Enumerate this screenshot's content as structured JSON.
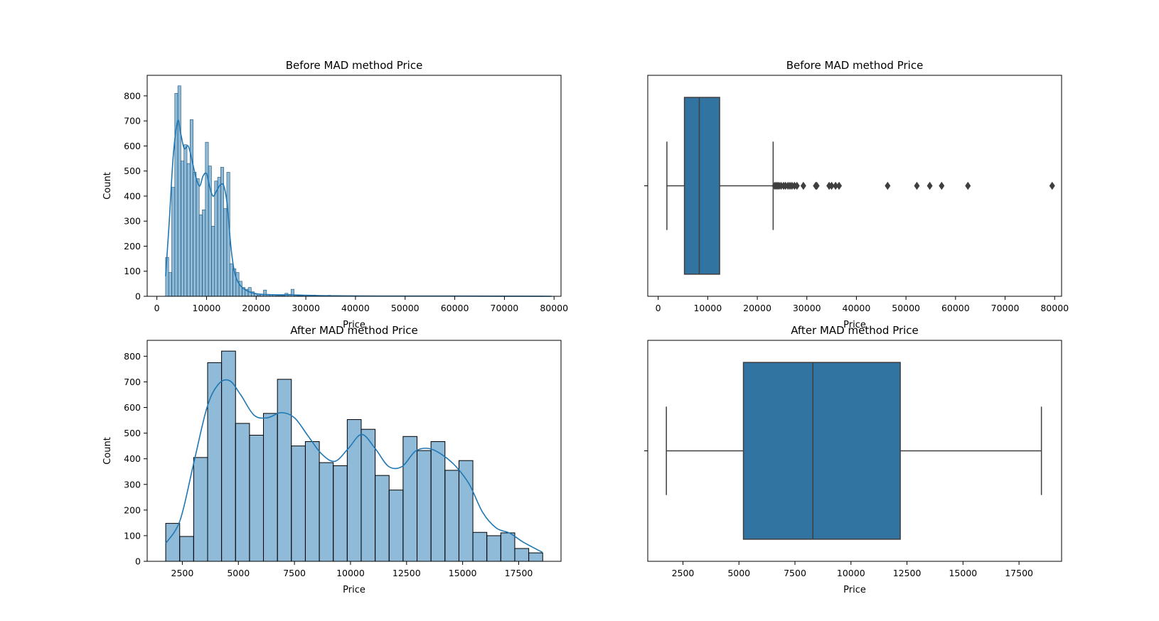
{
  "chart_data": [
    {
      "id": "hist-before",
      "type": "bar",
      "subtype": "histogram-with-kde",
      "title": "Before MAD method Price",
      "xlabel": "Price",
      "ylabel": "Count",
      "xlim": [
        -1950,
        81400
      ],
      "ylim": [
        0,
        882
      ],
      "xticks": [
        0,
        10000,
        20000,
        30000,
        40000,
        50000,
        60000,
        70000,
        80000
      ],
      "yticks": [
        0,
        100,
        200,
        300,
        400,
        500,
        600,
        700,
        800
      ],
      "bar_color": "#1f77b4",
      "bin_edges": [
        1760,
        2376,
        2992,
        3608,
        4224,
        4840,
        5456,
        6072,
        6688,
        7304,
        7920,
        8536,
        9152,
        9768,
        10384,
        11000,
        11616,
        12232,
        12848,
        13464,
        14080,
        14696,
        15312,
        15928,
        16544,
        17160,
        17776,
        18392,
        19008,
        19624,
        20240,
        20856,
        21472,
        22088,
        22704,
        23320,
        23936,
        24552,
        25168,
        25784,
        26400,
        27016,
        27632,
        28248,
        28864,
        29480,
        30096,
        30712,
        31328,
        31944,
        32560,
        33176,
        33792,
        34408,
        35024,
        35640,
        36256,
        36872,
        37488,
        38104
      ],
      "values": [
        155,
        95,
        435,
        810,
        840,
        540,
        605,
        530,
        705,
        495,
        470,
        325,
        345,
        615,
        520,
        280,
        460,
        475,
        515,
        350,
        495,
        130,
        110,
        95,
        60,
        35,
        28,
        35,
        18,
        10,
        5,
        8,
        25,
        8,
        5,
        5,
        3,
        3,
        3,
        12,
        8,
        28,
        3,
        2,
        2,
        1,
        1,
        2,
        5,
        3,
        1,
        1,
        1,
        4,
        3,
        3,
        3,
        1,
        1
      ],
      "kde": {
        "x": [
          1760,
          2500,
          3300,
          4200,
          4800,
          5500,
          6300,
          7000,
          7800,
          8600,
          9300,
          10000,
          10600,
          11300,
          12000,
          12800,
          13500,
          14200,
          14900,
          15600,
          16400,
          17500,
          19000,
          21000,
          24000,
          27000,
          30000,
          35000,
          45000,
          60000,
          79500
        ],
        "y": [
          80,
          300,
          560,
          700,
          650,
          590,
          600,
          550,
          480,
          440,
          480,
          490,
          440,
          400,
          420,
          445,
          440,
          360,
          200,
          100,
          55,
          30,
          15,
          8,
          6,
          6,
          4,
          2,
          1,
          1,
          0
        ]
      }
    },
    {
      "id": "box-before",
      "type": "boxplot",
      "title": "Before MAD method Price",
      "xlabel": "Price",
      "xlim": [
        -2100,
        81400
      ],
      "xticks": [
        0,
        10000,
        20000,
        30000,
        40000,
        50000,
        60000,
        70000,
        80000
      ],
      "color": "#3274a1",
      "whisker_low": 1760,
      "q1": 5300,
      "median": 8300,
      "q3": 12400,
      "whisker_high": 23200,
      "outliers": [
        23500,
        23800,
        24100,
        24400,
        24800,
        25300,
        25700,
        26200,
        26600,
        27000,
        27500,
        28000,
        29300,
        31800,
        32000,
        34500,
        35000,
        35800,
        36500,
        46300,
        52200,
        54800,
        57200,
        62500,
        79500
      ]
    },
    {
      "id": "hist-after",
      "type": "bar",
      "subtype": "histogram-with-kde",
      "title": "After MAD method Price",
      "xlabel": "Price",
      "ylabel": "Count",
      "xlim": [
        933,
        19387
      ],
      "ylim": [
        0,
        862
      ],
      "xticks": [
        2500,
        5000,
        7500,
        10000,
        12500,
        15000,
        17500
      ],
      "yticks": [
        0,
        100,
        200,
        300,
        400,
        500,
        600,
        700,
        800
      ],
      "bar_color": "#1f77b4",
      "bin_edges": [
        1760,
        2383,
        3005,
        3628,
        4250,
        4873,
        5496,
        6118,
        6741,
        7363,
        7986,
        8609,
        9231,
        9854,
        10476,
        11099,
        11722,
        12344,
        12967,
        13589,
        14212,
        14835,
        15457,
        16080,
        16702,
        17325,
        17948,
        18570
      ],
      "values": [
        148,
        97,
        405,
        775,
        820,
        538,
        492,
        577,
        710,
        450,
        467,
        385,
        373,
        553,
        515,
        335,
        278,
        487,
        432,
        467,
        355,
        393,
        113,
        100,
        111,
        50,
        33
      ],
      "kde": {
        "x": [
          1760,
          2400,
          3000,
          3600,
          4100,
          4600,
          5100,
          5700,
          6300,
          6900,
          7500,
          8100,
          8700,
          9300,
          9900,
          10500,
          11100,
          11700,
          12300,
          12900,
          13500,
          14100,
          14700,
          15300,
          15900,
          16500,
          17100,
          17700,
          18560
        ],
        "y": [
          70,
          160,
          380,
          600,
          690,
          705,
          650,
          570,
          560,
          580,
          560,
          490,
          420,
          390,
          440,
          495,
          440,
          370,
          370,
          430,
          440,
          415,
          370,
          300,
          190,
          130,
          110,
          75,
          35
        ]
      }
    },
    {
      "id": "box-after",
      "type": "boxplot",
      "title": "After MAD method Price",
      "xlabel": "Price",
      "xlim": [
        930,
        19400
      ],
      "xticks": [
        2500,
        5000,
        7500,
        10000,
        12500,
        15000,
        17500
      ],
      "color": "#3274a1",
      "whisker_low": 1760,
      "q1": 5200,
      "median": 8300,
      "q3": 12200,
      "whisker_high": 18500,
      "outliers": []
    }
  ]
}
